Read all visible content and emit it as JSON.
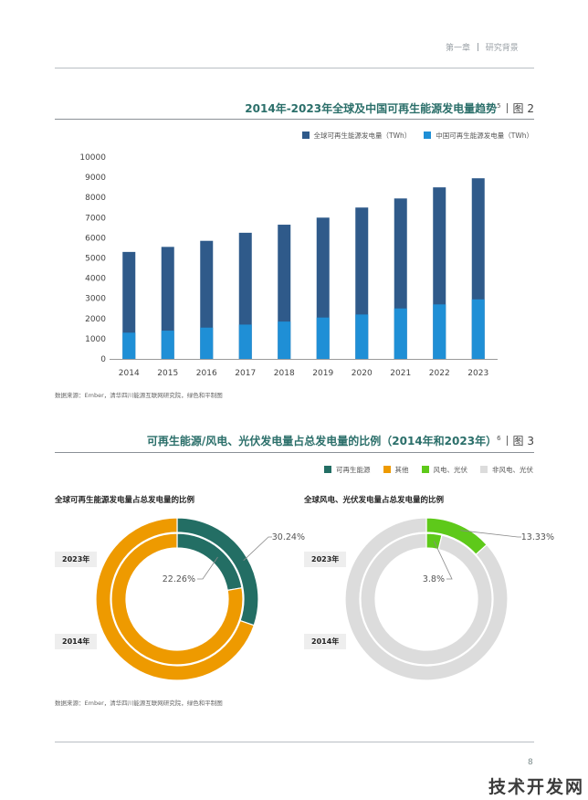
{
  "header": {
    "chapter": "第一章",
    "section": "研究背景"
  },
  "figure2": {
    "title": "2014年-2023年全球及中国可再生能源发电量趋势",
    "footnote": "5",
    "label": "图 2",
    "source": "数据来源：Ember，清华四川能源互联网研究院，绿色和平制图"
  },
  "figure3": {
    "title": "可再生能源/风电、光伏发电量占总发电量的比例（2014年和2023年）",
    "footnote": "6",
    "label": "图 3",
    "source": "数据来源：Ember，清华四川能源互联网研究院，绿色和平制图",
    "legend": [
      {
        "label": "可再生能源",
        "color": "#236e64"
      },
      {
        "label": "其他",
        "color": "#ee9a00"
      },
      {
        "label": "风电、光伏",
        "color": "#5ec91a"
      },
      {
        "label": "非风电、光伏",
        "color": "#dcdcdc"
      }
    ]
  },
  "chart_data": [
    {
      "type": "bar",
      "stacked": false,
      "overlapping": true,
      "categories": [
        "2014",
        "2015",
        "2016",
        "2017",
        "2018",
        "2019",
        "2020",
        "2021",
        "2022",
        "2023"
      ],
      "series": [
        {
          "name": "全球可再生能源发电量（TWh）",
          "color": "#2f5a8a",
          "values": [
            5300,
            5550,
            5850,
            6250,
            6650,
            7000,
            7500,
            7950,
            8500,
            8950
          ]
        },
        {
          "name": "中国可再生能源发电量（TWh）",
          "color": "#1f8fd6",
          "values": [
            1300,
            1400,
            1550,
            1700,
            1850,
            2050,
            2200,
            2500,
            2700,
            2950
          ]
        }
      ],
      "ylim": [
        0,
        10000
      ],
      "yticks": [
        "0",
        "1000",
        "2000",
        "3000",
        "4000",
        "5000",
        "6000",
        "7000",
        "8000",
        "9000",
        "10000"
      ],
      "legend_position": "top-right",
      "grid": false
    },
    {
      "type": "pie",
      "subtype": "double-donut",
      "title": "全球可再生能源发电量占总发电量的比例",
      "rings": [
        {
          "name": "2023年",
          "ring": "outer",
          "slices": [
            {
              "label": "可再生能源",
              "value": 30.24,
              "color": "#236e64"
            },
            {
              "label": "其他",
              "value": 69.76,
              "color": "#ee9a00"
            }
          ]
        },
        {
          "name": "2014年",
          "ring": "inner",
          "slices": [
            {
              "label": "可再生能源",
              "value": 22.26,
              "color": "#236e64"
            },
            {
              "label": "其他",
              "value": 77.74,
              "color": "#ee9a00"
            }
          ]
        }
      ],
      "annotations": [
        "30.24%",
        "22.26%"
      ]
    },
    {
      "type": "pie",
      "subtype": "double-donut",
      "title": "全球风电、光伏发电量占总发电量的比例",
      "rings": [
        {
          "name": "2023年",
          "ring": "outer",
          "slices": [
            {
              "label": "风电、光伏",
              "value": 13.33,
              "color": "#5ec91a"
            },
            {
              "label": "非风电、光伏",
              "value": 86.67,
              "color": "#dcdcdc"
            }
          ]
        },
        {
          "name": "2014年",
          "ring": "inner",
          "slices": [
            {
              "label": "风电、光伏",
              "value": 3.8,
              "color": "#5ec91a"
            },
            {
              "label": "非风电、光伏",
              "value": 96.2,
              "color": "#dcdcdc"
            }
          ]
        }
      ],
      "annotations": [
        "13.33%",
        "3.8%"
      ]
    }
  ],
  "footer": {
    "page_number": "8",
    "watermark": "技术开发网"
  }
}
